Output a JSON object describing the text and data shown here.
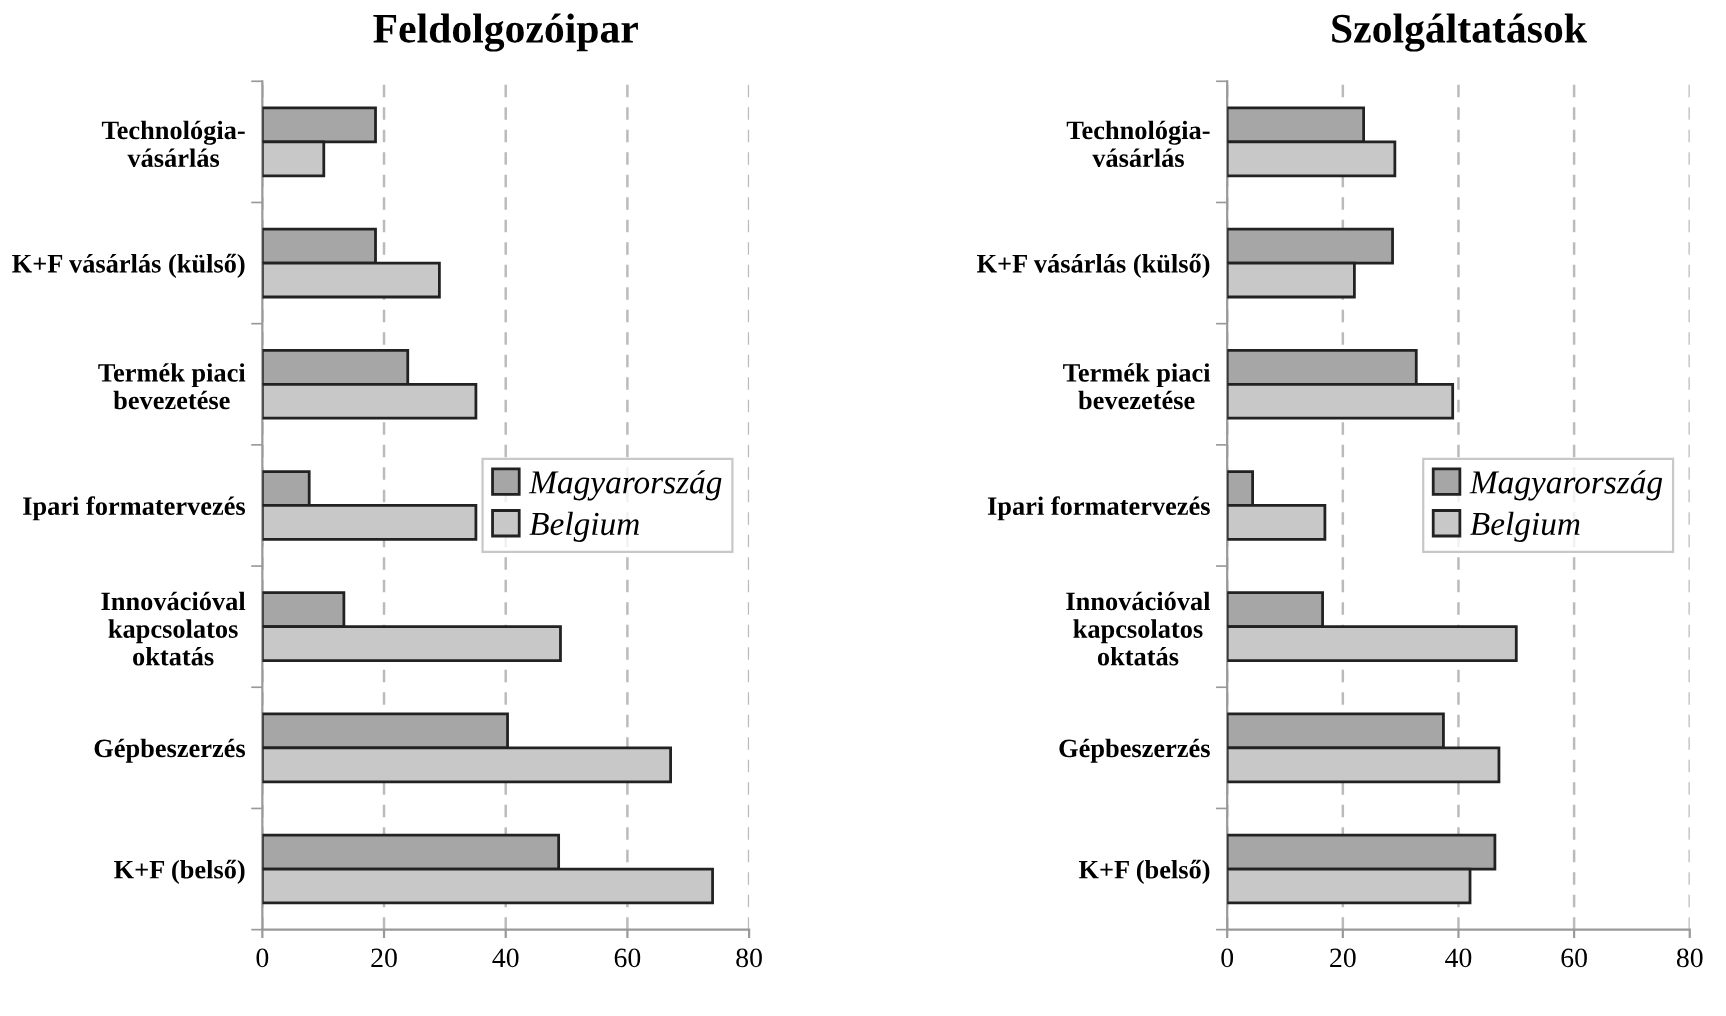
{
  "chart_data": [
    {
      "type": "bar",
      "orientation": "horizontal",
      "title": "Feldolgozóipar",
      "categories": [
        "Technológia-\nvásárlás",
        "K+F vásárlás (külső)",
        "Termék piaci\nbevezetése",
        "Ipari formatervezés",
        "Innovációval\nkapcsolatos\noktatás",
        "Gépbeszerzés",
        "K+F (belső)"
      ],
      "series": [
        {
          "name": "Magyarország",
          "color": "#a6a6a6",
          "values": [
            18.6,
            18.6,
            23.9,
            7.7,
            13.4,
            40.3,
            48.7
          ]
        },
        {
          "name": "Belgium",
          "color": "#c8c8c8",
          "values": [
            10.1,
            29.1,
            35.1,
            35.1,
            49.0,
            67.1,
            74.0
          ]
        }
      ],
      "xlim": [
        0,
        80
      ],
      "xticks": [
        0,
        20,
        40,
        60,
        80
      ],
      "grid": "x",
      "legend": "right"
    },
    {
      "type": "bar",
      "orientation": "horizontal",
      "title": "Szolgáltatások",
      "categories": [
        "Technológia-\nvásárlás",
        "K+F vásárlás (külső)",
        "Termék piaci\nbevezetése",
        "Ipari formatervezés",
        "Innovációval\nkapcsolatos\noktatás",
        "Gépbeszerzés",
        "K+F (belső)"
      ],
      "series": [
        {
          "name": "Magyarország",
          "color": "#a6a6a6",
          "values": [
            23.6,
            28.6,
            32.7,
            4.4,
            16.5,
            37.4,
            46.3
          ]
        },
        {
          "name": "Belgium",
          "color": "#c8c8c8",
          "values": [
            29.0,
            22.0,
            39.0,
            16.9,
            50.0,
            47.0,
            42.0
          ]
        }
      ],
      "xlim": [
        0,
        80
      ],
      "xticks": [
        0,
        20,
        40,
        60,
        80
      ],
      "grid": "x",
      "legend": "right"
    }
  ]
}
